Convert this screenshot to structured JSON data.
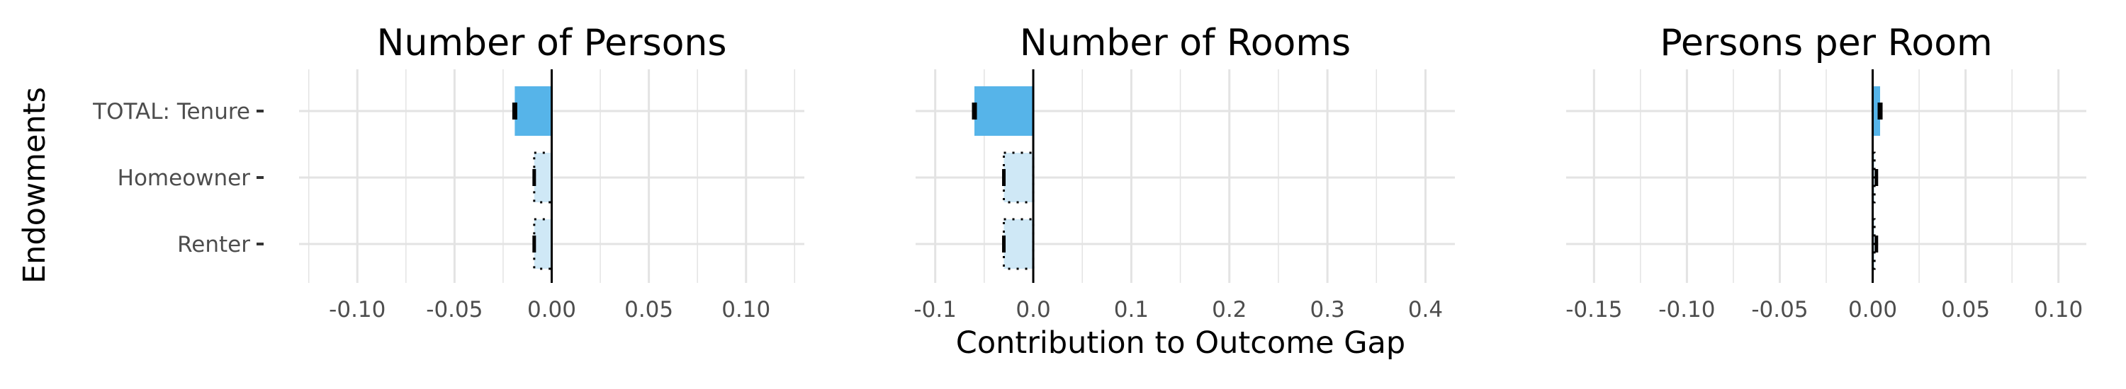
{
  "figure": {
    "xlabel": "Contribution to Outcome Gap",
    "ylabel": "Endowments"
  },
  "chart_data": [
    {
      "type": "bar",
      "title": "Number of Persons",
      "categories": [
        "TOTAL: Tenure",
        "Homeowner",
        "Renter"
      ],
      "values": [
        -0.019,
        -0.009,
        -0.009
      ],
      "error_low": [
        -0.019,
        -0.009,
        -0.009
      ],
      "xlim": [
        -0.13,
        0.13
      ],
      "xticks": [
        -0.1,
        -0.05,
        0.0,
        0.05,
        0.1
      ],
      "xtick_labels": [
        "-0.10",
        "-0.05",
        "0.00",
        "0.05",
        "0.10"
      ],
      "grid": true
    },
    {
      "type": "bar",
      "title": "Number of Rooms",
      "categories": [
        "TOTAL: Tenure",
        "Homeowner",
        "Renter"
      ],
      "values": [
        -0.06,
        -0.03,
        -0.03
      ],
      "error_low": [
        -0.06,
        -0.03,
        -0.03
      ],
      "xlim": [
        -0.12,
        0.43
      ],
      "xticks": [
        -0.1,
        0.0,
        0.1,
        0.2,
        0.3,
        0.4
      ],
      "xtick_labels": [
        "-0.1",
        "0.0",
        "0.1",
        "0.2",
        "0.3",
        "0.4"
      ],
      "grid": true
    },
    {
      "type": "bar",
      "title": "Persons per Room",
      "categories": [
        "TOTAL: Tenure",
        "Homeowner",
        "Renter"
      ],
      "values": [
        0.004,
        0.001,
        0.001
      ],
      "error_low": [
        0.004,
        0.002,
        0.002
      ],
      "xlim": [
        -0.165,
        0.115
      ],
      "xticks": [
        -0.15,
        -0.1,
        -0.05,
        0.0,
        0.05,
        0.1
      ],
      "xtick_labels": [
        "-0.15",
        "-0.10",
        "-0.05",
        "0.00",
        "0.05",
        "0.10"
      ],
      "grid": true
    }
  ],
  "colors": {
    "total_bar": "#56b4e9",
    "component_bar": "#cfe8f6",
    "grid": "#e3e3e3",
    "zero_line": "#000000",
    "tick_text": "#4d4d4d",
    "title_text": "#000000"
  }
}
